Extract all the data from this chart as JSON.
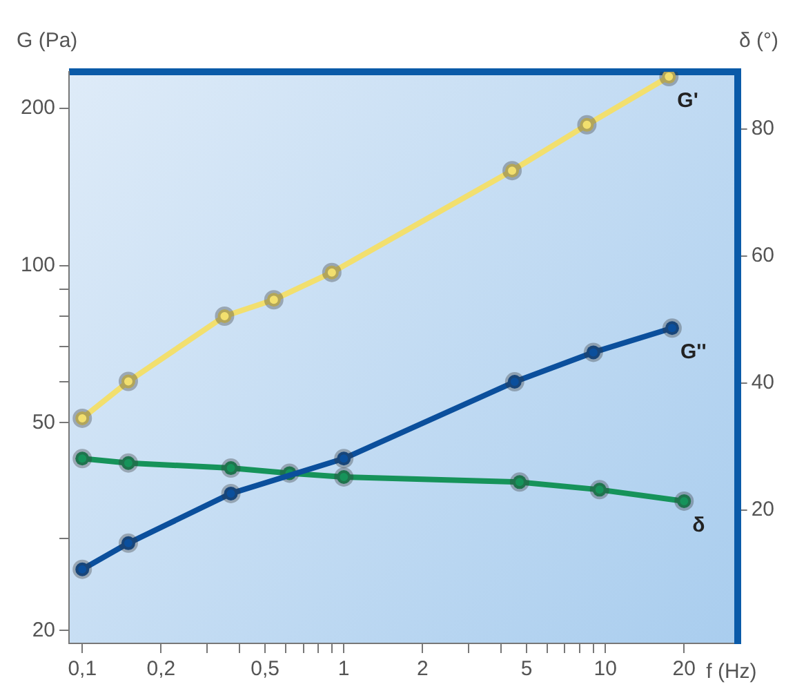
{
  "chart_data": {
    "type": "line",
    "xlabel": "f (Hz)",
    "ylabel": "G (Pa)",
    "y2label": "δ (°)",
    "log": "xy",
    "grid": false,
    "legend": false,
    "marker": "circle",
    "line_style": "solid",
    "xlim": [
      0.089,
      32
    ],
    "xticks": [
      {
        "value": 0.1,
        "label": "0,1"
      },
      {
        "value": 0.2,
        "label": "0,2"
      },
      {
        "value": 0.3,
        "label": null
      },
      {
        "value": 0.4,
        "label": null
      },
      {
        "value": 0.5,
        "label": "0,5"
      },
      {
        "value": 0.6,
        "label": null
      },
      {
        "value": 0.7,
        "label": null
      },
      {
        "value": 0.8,
        "label": null
      },
      {
        "value": 0.9,
        "label": null
      },
      1,
      2,
      {
        "value": 3,
        "label": null
      },
      {
        "value": 4,
        "label": null
      },
      5,
      {
        "value": 6,
        "label": null
      },
      {
        "value": 7,
        "label": null
      },
      {
        "value": 8,
        "label": null
      },
      {
        "value": 9,
        "label": null
      },
      10,
      20
    ],
    "ylim": [
      18.9,
      235
    ],
    "yticks": [
      20,
      {
        "value": 30,
        "label": null
      },
      50,
      {
        "value": 60,
        "label": null
      },
      {
        "value": 70,
        "label": null
      },
      {
        "value": 80,
        "label": null
      },
      {
        "value": 90,
        "label": null
      },
      100,
      200
    ],
    "y2lim": [
      -1,
      89
    ],
    "y2ticks": [
      20,
      40,
      60,
      80
    ],
    "series": [
      {
        "name": "G'",
        "color": "#f2df6e",
        "x": [
          0.1,
          0.15,
          0.35,
          0.54,
          0.9,
          4.4,
          8.5,
          17.5
        ],
        "values": [
          51,
          60,
          80,
          86,
          97,
          152,
          186,
          230
        ]
      },
      {
        "name": "G''",
        "color": "#0b4f9c",
        "x": [
          0.1,
          0.15,
          0.37,
          1,
          4.5,
          9,
          18
        ],
        "values": [
          26.2,
          29.4,
          36.6,
          42.7,
          59.9,
          68.2,
          75.9
        ]
      },
      {
        "name": "δ",
        "color": "#16935a",
        "axis": "y2",
        "x": [
          0.1,
          0.15,
          0.37,
          0.62,
          1,
          4.7,
          9.5,
          20
        ],
        "values": [
          28.1,
          27.4,
          26.6,
          25.8,
          25.2,
          24.4,
          23.2,
          21.4
        ]
      }
    ]
  }
}
